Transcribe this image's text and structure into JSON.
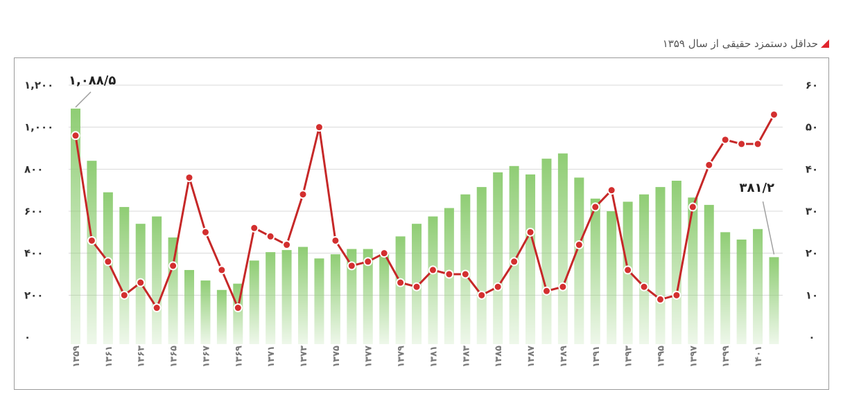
{
  "title": "حداقل دستمزد حقیقی از سال ۱۳۵۹",
  "colors": {
    "bar": "#8fcd74",
    "line": "#c62828",
    "marker_fill": "#d32f2f",
    "marker_stroke": "#ffffff",
    "title_marker": "#e0252d"
  },
  "chart_data": {
    "type": "bar",
    "title": "حداقل دستمزد حقیقی از سال ۱۳۵۹",
    "xlabel": "",
    "ylabel": "",
    "x": [
      1359,
      1360,
      1361,
      1362,
      1363,
      1364,
      1365,
      1366,
      1367,
      1368,
      1369,
      1370,
      1371,
      1372,
      1373,
      1374,
      1375,
      1376,
      1377,
      1378,
      1379,
      1380,
      1381,
      1382,
      1383,
      1384,
      1385,
      1386,
      1387,
      1388,
      1389,
      1390,
      1391,
      1392,
      1393,
      1394,
      1395,
      1396,
      1397,
      1398,
      1399,
      1400,
      1401,
      1402
    ],
    "x_tick_labels": [
      "۱۳۵۹",
      "۱۳۶۱",
      "۱۳۶۳",
      "۱۳۶۵",
      "۱۳۶۷",
      "۱۳۶۹",
      "۱۳۷۱",
      "۱۳۷۳",
      "۱۳۷۵",
      "۱۳۷۷",
      "۱۳۷۹",
      "۱۳۸۱",
      "۱۳۸۳",
      "۱۳۸۵",
      "۱۳۸۷",
      "۱۳۸۹",
      "۱۳۹۱",
      "۱۳۹۳",
      "۱۳۹۵",
      "۱۳۹۷",
      "۱۳۹۹",
      "۱۴۰۱"
    ],
    "x_tick_values": [
      1359,
      1361,
      1363,
      1365,
      1367,
      1369,
      1371,
      1373,
      1375,
      1377,
      1379,
      1381,
      1383,
      1385,
      1387,
      1389,
      1391,
      1393,
      1395,
      1397,
      1399,
      1401
    ],
    "left_ylim": [
      0,
      1200
    ],
    "left_ticks": [
      "۰",
      "۲۰۰",
      "۴۰۰",
      "۶۰۰",
      "۸۰۰",
      "۱,۰۰۰",
      "۱,۲۰۰"
    ],
    "right_ylim": [
      0,
      60
    ],
    "right_ticks": [
      "۰",
      "۱۰",
      "۲۰",
      "۳۰",
      "۴۰",
      "۵۰",
      "۶۰"
    ],
    "grid": "horizontal",
    "series": [
      {
        "type": "bar",
        "axis": "left",
        "values": [
          1088.5,
          840,
          690,
          620,
          540,
          575,
          475,
          320,
          270,
          225,
          255,
          365,
          405,
          415,
          430,
          375,
          395,
          420,
          420,
          395,
          480,
          540,
          575,
          615,
          680,
          715,
          785,
          815,
          775,
          850,
          875,
          760,
          660,
          600,
          645,
          680,
          715,
          745,
          665,
          630,
          500,
          465,
          515,
          381.2
        ]
      },
      {
        "type": "line",
        "axis": "right",
        "values": [
          48,
          23,
          18,
          10,
          13,
          7,
          17,
          38,
          25,
          16,
          7,
          26,
          24,
          22,
          34,
          50,
          23,
          17,
          18,
          20,
          13,
          12,
          16,
          15,
          15,
          10,
          12,
          18,
          25,
          11,
          12,
          22,
          31,
          35,
          16,
          12,
          9,
          10,
          31,
          41,
          47,
          46,
          46,
          53
        ]
      }
    ],
    "annotations": [
      {
        "text": "۱,۰۸۸/۵",
        "x": 1359,
        "series": 0
      },
      {
        "text": "۳۸۱/۲",
        "x": 1402,
        "series": 0
      }
    ]
  }
}
